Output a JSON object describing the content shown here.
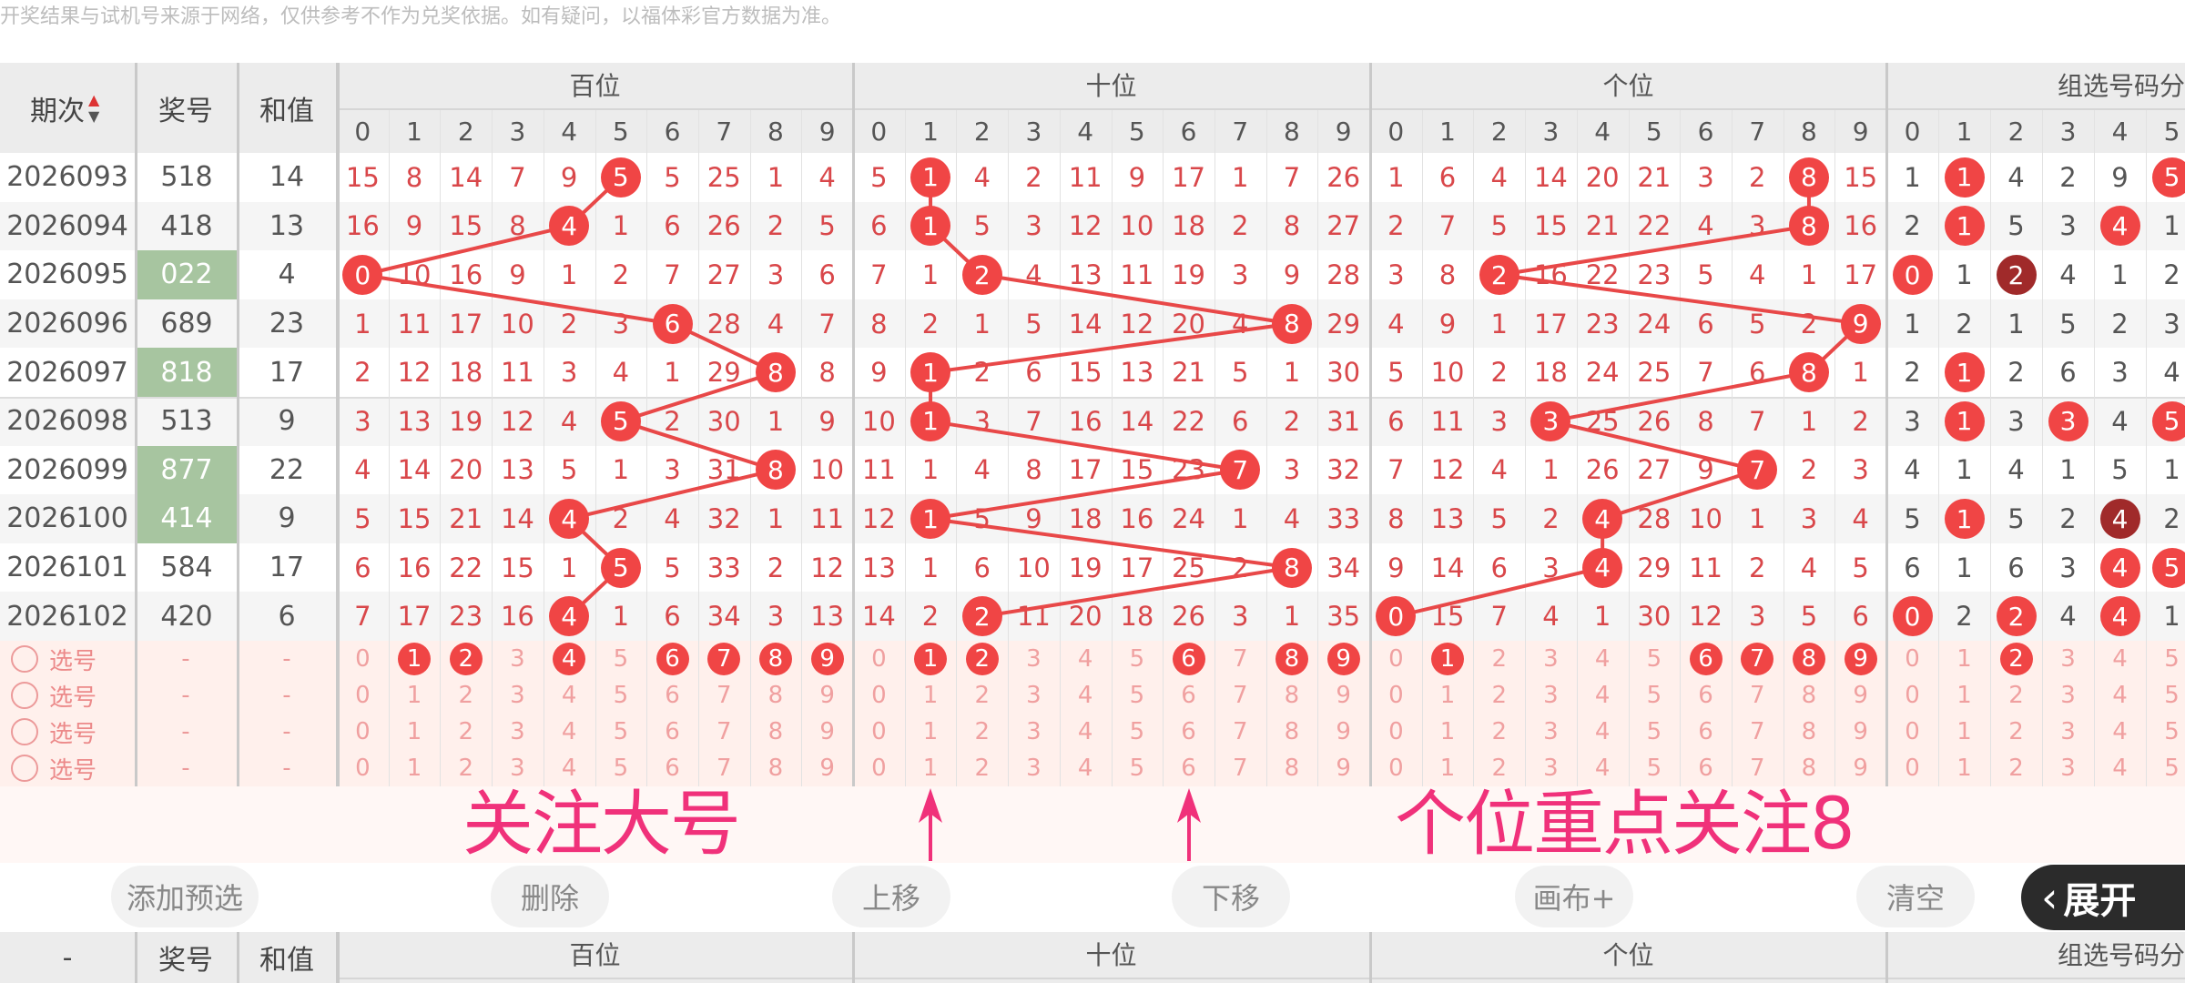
{
  "notice": "开奖结果与试机号来源于网络，仅供参考不作为兑奖依据。如有疑问，以福体彩官方数据为准。",
  "header": {
    "period": "期次",
    "sort_icon": "sort-up-down-icon",
    "number": "奖号",
    "sum": "和值",
    "sections": [
      "百位",
      "十位",
      "个位",
      "组选号码分"
    ],
    "digits": [
      "0",
      "1",
      "2",
      "3",
      "4",
      "5",
      "6",
      "7",
      "8",
      "9"
    ]
  },
  "colors": {
    "hit": "#f04545",
    "hit_double": "#a02a2a",
    "line": "#e84848",
    "miss_text": "#d9474a",
    "group3_bg": "#a7c5a0",
    "annotation": "#f0317a"
  },
  "rows": [
    {
      "period": "2026093",
      "number": "518",
      "sum": "14",
      "group3": false,
      "hundreds": [
        15,
        8,
        14,
        7,
        9,
        5,
        5,
        25,
        1,
        4
      ],
      "tens": [
        5,
        1,
        4,
        2,
        11,
        9,
        17,
        1,
        7,
        26
      ],
      "units": [
        1,
        6,
        4,
        14,
        20,
        21,
        3,
        2,
        8,
        15
      ],
      "group": [
        1,
        1,
        4,
        2,
        9,
        5
      ],
      "group_hits": [
        1,
        5
      ],
      "group_double": []
    },
    {
      "period": "2026094",
      "number": "418",
      "sum": "13",
      "group3": false,
      "hundreds": [
        16,
        9,
        15,
        8,
        4,
        1,
        6,
        26,
        2,
        5
      ],
      "tens": [
        6,
        1,
        5,
        3,
        12,
        10,
        18,
        2,
        8,
        27
      ],
      "units": [
        2,
        7,
        5,
        15,
        21,
        22,
        4,
        3,
        8,
        16
      ],
      "group": [
        2,
        1,
        5,
        3,
        4,
        1
      ],
      "group_hits": [
        1,
        4
      ],
      "group_double": []
    },
    {
      "period": "2026095",
      "number": "022",
      "sum": "4",
      "group3": true,
      "hundreds": [
        0,
        10,
        16,
        9,
        1,
        2,
        7,
        27,
        3,
        6
      ],
      "tens": [
        7,
        1,
        2,
        4,
        13,
        11,
        19,
        3,
        9,
        28
      ],
      "units": [
        3,
        8,
        2,
        16,
        22,
        23,
        5,
        4,
        1,
        17
      ],
      "group": [
        0,
        1,
        2,
        4,
        1,
        2
      ],
      "group_hits": [
        0
      ],
      "group_double": [
        2
      ]
    },
    {
      "period": "2026096",
      "number": "689",
      "sum": "23",
      "group3": false,
      "hundreds": [
        1,
        11,
        17,
        10,
        2,
        3,
        6,
        28,
        4,
        7
      ],
      "tens": [
        8,
        2,
        1,
        5,
        14,
        12,
        20,
        4,
        8,
        29
      ],
      "units": [
        4,
        9,
        1,
        17,
        23,
        24,
        6,
        5,
        2,
        9
      ],
      "group": [
        1,
        2,
        1,
        5,
        2,
        3
      ],
      "group_hits": [],
      "group_double": []
    },
    {
      "period": "2026097",
      "number": "818",
      "sum": "17",
      "group3": true,
      "hundreds": [
        2,
        12,
        18,
        11,
        3,
        4,
        1,
        29,
        8,
        8
      ],
      "tens": [
        9,
        1,
        2,
        6,
        15,
        13,
        21,
        5,
        1,
        30
      ],
      "units": [
        5,
        10,
        2,
        18,
        24,
        25,
        7,
        6,
        8,
        1
      ],
      "group": [
        2,
        1,
        2,
        6,
        3,
        4
      ],
      "group_hits": [
        1
      ],
      "group_double": []
    },
    {
      "period": "2026098",
      "number": "513",
      "sum": "9",
      "group3": false,
      "hundreds": [
        3,
        13,
        19,
        12,
        4,
        5,
        2,
        30,
        1,
        9
      ],
      "tens": [
        10,
        1,
        3,
        7,
        16,
        14,
        22,
        6,
        2,
        31
      ],
      "units": [
        6,
        11,
        3,
        3,
        25,
        26,
        8,
        7,
        1,
        2
      ],
      "group": [
        3,
        1,
        3,
        3,
        4,
        5
      ],
      "group_hits": [
        1,
        3,
        5
      ],
      "group_double": []
    },
    {
      "period": "2026099",
      "number": "877",
      "sum": "22",
      "group3": true,
      "hundreds": [
        4,
        14,
        20,
        13,
        5,
        1,
        3,
        31,
        8,
        10
      ],
      "tens": [
        11,
        1,
        4,
        8,
        17,
        15,
        23,
        7,
        3,
        32
      ],
      "units": [
        7,
        12,
        4,
        1,
        26,
        27,
        9,
        7,
        2,
        3
      ],
      "group": [
        4,
        1,
        4,
        1,
        5,
        1
      ],
      "group_hits": [],
      "group_double": []
    },
    {
      "period": "2026100",
      "number": "414",
      "sum": "9",
      "group3": true,
      "hundreds": [
        5,
        15,
        21,
        14,
        4,
        2,
        4,
        32,
        1,
        11
      ],
      "tens": [
        12,
        1,
        5,
        9,
        18,
        16,
        24,
        1,
        4,
        33
      ],
      "units": [
        8,
        13,
        5,
        2,
        4,
        28,
        10,
        1,
        3,
        4
      ],
      "group": [
        5,
        1,
        5,
        2,
        4,
        2
      ],
      "group_hits": [
        1
      ],
      "group_double": [
        4
      ]
    },
    {
      "period": "2026101",
      "number": "584",
      "sum": "17",
      "group3": false,
      "hundreds": [
        6,
        16,
        22,
        15,
        1,
        5,
        5,
        33,
        2,
        12
      ],
      "tens": [
        13,
        1,
        6,
        10,
        19,
        17,
        25,
        2,
        8,
        34
      ],
      "units": [
        9,
        14,
        6,
        3,
        4,
        29,
        11,
        2,
        4,
        5
      ],
      "group": [
        6,
        1,
        6,
        3,
        4,
        5
      ],
      "group_hits": [
        4,
        5
      ],
      "group_double": []
    },
    {
      "period": "2026102",
      "number": "420",
      "sum": "6",
      "group3": false,
      "hundreds": [
        7,
        17,
        23,
        16,
        4,
        1,
        6,
        34,
        3,
        13
      ],
      "tens": [
        14,
        2,
        2,
        11,
        20,
        18,
        26,
        3,
        1,
        35
      ],
      "units": [
        0,
        15,
        7,
        4,
        1,
        30,
        12,
        3,
        5,
        6
      ],
      "group": [
        0,
        2,
        2,
        4,
        4,
        1
      ],
      "group_hits": [
        0,
        2,
        4
      ],
      "group_double": []
    }
  ],
  "selection": {
    "label": "选号",
    "dash": "-",
    "rows": [
      {
        "hundreds": [
          1,
          2,
          4,
          6,
          7,
          8,
          9
        ],
        "tens": [
          1,
          2,
          6,
          8,
          9
        ],
        "units": [
          1,
          6,
          7,
          8,
          9
        ],
        "group": [
          2
        ]
      },
      {
        "hundreds": [],
        "tens": [],
        "units": [],
        "group": []
      },
      {
        "hundreds": [],
        "tens": [],
        "units": [],
        "group": []
      },
      {
        "hundreds": [],
        "tens": [],
        "units": [],
        "group": []
      }
    ]
  },
  "annotations": {
    "left": "关注大号",
    "right": "个位重点关注8",
    "arrows": [
      "up-arrow-tens-1",
      "up-arrow-tens-6"
    ]
  },
  "buttons": {
    "add": "添加预选",
    "delete": "删除",
    "up": "上移",
    "down": "下移",
    "canvas": "画布+",
    "clear": "清空",
    "expand": "展开"
  },
  "bottom_header": {
    "period": "-",
    "number": "奖号",
    "sum": "和值",
    "sections": [
      "百位",
      "十位",
      "个位",
      "组选号码分"
    ]
  }
}
